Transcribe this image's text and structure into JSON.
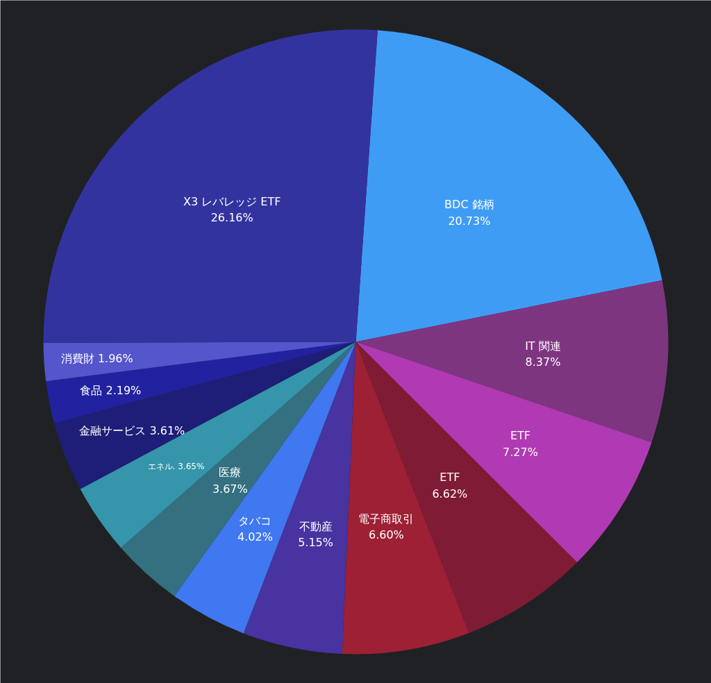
{
  "chart_data": {
    "type": "pie",
    "categories": [
      "BDC 銘柄",
      "IT 関連",
      "ETF",
      "ETF",
      "電子商取引",
      "不動産",
      "タバコ",
      "医療",
      "エネル.",
      "金融サービス",
      "食品",
      "消費財",
      "X3 レバレッジ ETF"
    ],
    "values": [
      20.73,
      8.37,
      7.27,
      6.62,
      6.6,
      5.15,
      4.02,
      3.67,
      3.65,
      3.61,
      2.19,
      1.96,
      26.16
    ],
    "value_labels": [
      "20.73%",
      "8.37%",
      "7.27%",
      "6.62%",
      "6.60%",
      "5.15%",
      "4.02%",
      "3.67%",
      "3.65%",
      "3.61%",
      "2.19%",
      "1.96%",
      "26.16%"
    ],
    "colors": [
      "#3f9cf5",
      "#7e3580",
      "#b03ab3",
      "#801b35",
      "#9d2035",
      "#4833a0",
      "#3f78f0",
      "#357080",
      "#3595aa",
      "#1e1e78",
      "#2222a0",
      "#5555cc",
      "#3333a0"
    ]
  }
}
